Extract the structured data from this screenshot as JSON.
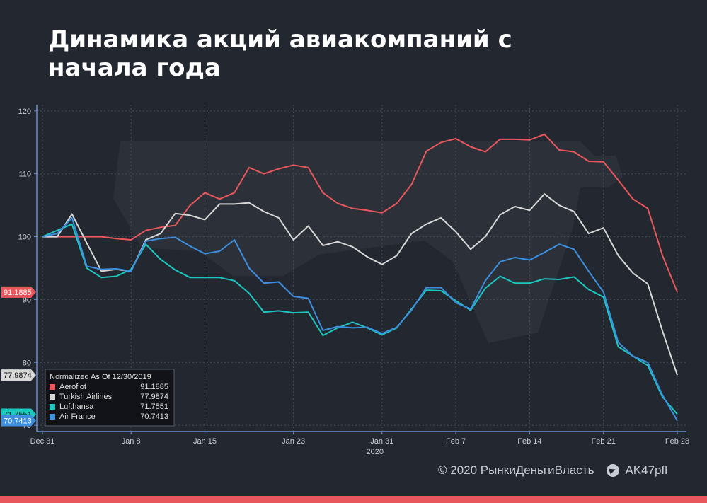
{
  "page": {
    "title": "Динамика акций авиакомпаний с начала года",
    "footer_copyright": "© 2020  РынкиДеньгиВласть",
    "footer_channel": "AK47pfl",
    "accent_color": "#e8575b"
  },
  "chart_data": {
    "type": "line",
    "xlabel": "",
    "ylabel": "",
    "year_label": "2020",
    "ylim": [
      69,
      121
    ],
    "yticks": [
      70,
      80,
      90,
      100,
      110,
      120
    ],
    "x_tick_labels": [
      "Dec 31",
      "Jan 8",
      "Jan 15",
      "Jan 23",
      "Jan 31",
      "Feb 7",
      "Feb 14",
      "Feb 21",
      "Feb 28"
    ],
    "x_tick_positions": [
      0,
      6,
      11,
      17,
      23,
      28,
      33,
      38,
      43
    ],
    "x": [
      "Dec 30",
      "Dec 31",
      "Jan 2",
      "Jan 3",
      "Jan 6",
      "Jan 7",
      "Jan 8",
      "Jan 9",
      "Jan 10",
      "Jan 13",
      "Jan 14",
      "Jan 15",
      "Jan 16",
      "Jan 17",
      "Jan 20",
      "Jan 21",
      "Jan 22",
      "Jan 23",
      "Jan 24",
      "Jan 27",
      "Jan 28",
      "Jan 29",
      "Jan 30",
      "Jan 31",
      "Feb 3",
      "Feb 4",
      "Feb 5",
      "Feb 6",
      "Feb 7",
      "Feb 10",
      "Feb 11",
      "Feb 12",
      "Feb 13",
      "Feb 14",
      "Feb 17",
      "Feb 18",
      "Feb 19",
      "Feb 20",
      "Feb 21",
      "Feb 24",
      "Feb 25",
      "Feb 26",
      "Feb 27",
      "Feb 28"
    ],
    "grid": true,
    "legend": {
      "placement": "bottom-left",
      "title": "Normalized As Of 12/30/2019"
    },
    "series": [
      {
        "name": "Aeroflot",
        "color": "#e8575b",
        "last_value": "91.1885",
        "values": [
          100,
          100,
          100,
          100,
          100,
          99.7,
          99.5,
          101,
          101.5,
          101.8,
          105,
          107,
          106,
          107,
          111,
          110,
          110.8,
          111.4,
          111,
          107,
          105.3,
          104.5,
          104.2,
          103.8,
          105.3,
          108.3,
          113.6,
          115,
          115.6,
          114.3,
          113.5,
          115.5,
          115.5,
          115.4,
          116.3,
          113.8,
          113.5,
          112,
          111.9,
          109,
          106,
          104.5,
          97,
          91.1885
        ]
      },
      {
        "name": "Turkish Airlines",
        "color": "#d8d8d8",
        "last_value": "77.9874",
        "values": [
          100,
          100,
          103.6,
          99,
          94.5,
          94.8,
          94.5,
          99.5,
          100.5,
          103.7,
          103.4,
          102.7,
          105.2,
          105.2,
          105.4,
          104,
          103,
          99.5,
          101.7,
          98.6,
          99.2,
          98.4,
          96.8,
          95.6,
          97,
          100.5,
          102,
          103,
          100.8,
          98,
          100,
          103.5,
          104.8,
          104.2,
          106.8,
          105,
          104,
          100.5,
          101.4,
          97,
          94.2,
          92.5,
          85,
          77.9874
        ]
      },
      {
        "name": "Lufthansa",
        "color": "#1cc7c0",
        "last_value": "71.7551",
        "values": [
          100,
          101,
          102,
          95,
          93.5,
          93.7,
          94.8,
          98.8,
          96.4,
          94.7,
          93.5,
          93.5,
          93.5,
          93,
          91,
          88,
          88.2,
          87.9,
          88,
          84.3,
          85.5,
          86.4,
          85.5,
          84.4,
          85.5,
          88.5,
          91.5,
          91.4,
          89.8,
          88.3,
          91.8,
          93.7,
          92.6,
          92.6,
          93.3,
          93.2,
          93.6,
          91.6,
          90.4,
          82.5,
          81,
          79.5,
          74.5,
          71.7551
        ]
      },
      {
        "name": "Air France",
        "color": "#3d8fe0",
        "last_value": "70.7413",
        "values": [
          100,
          100.5,
          103,
          95.3,
          94.8,
          94.9,
          94.5,
          99.3,
          99.7,
          99.9,
          98.5,
          97.3,
          97.7,
          99.5,
          95,
          92.6,
          92.8,
          90.5,
          90.2,
          85.1,
          85.7,
          85.5,
          85.6,
          84.6,
          85.6,
          88.3,
          91.9,
          91.9,
          89.5,
          88.5,
          93,
          96,
          96.7,
          96.3,
          97.5,
          98.8,
          98,
          94.5,
          91.2,
          83.2,
          81,
          80,
          74.8,
          70.7413
        ]
      }
    ]
  }
}
